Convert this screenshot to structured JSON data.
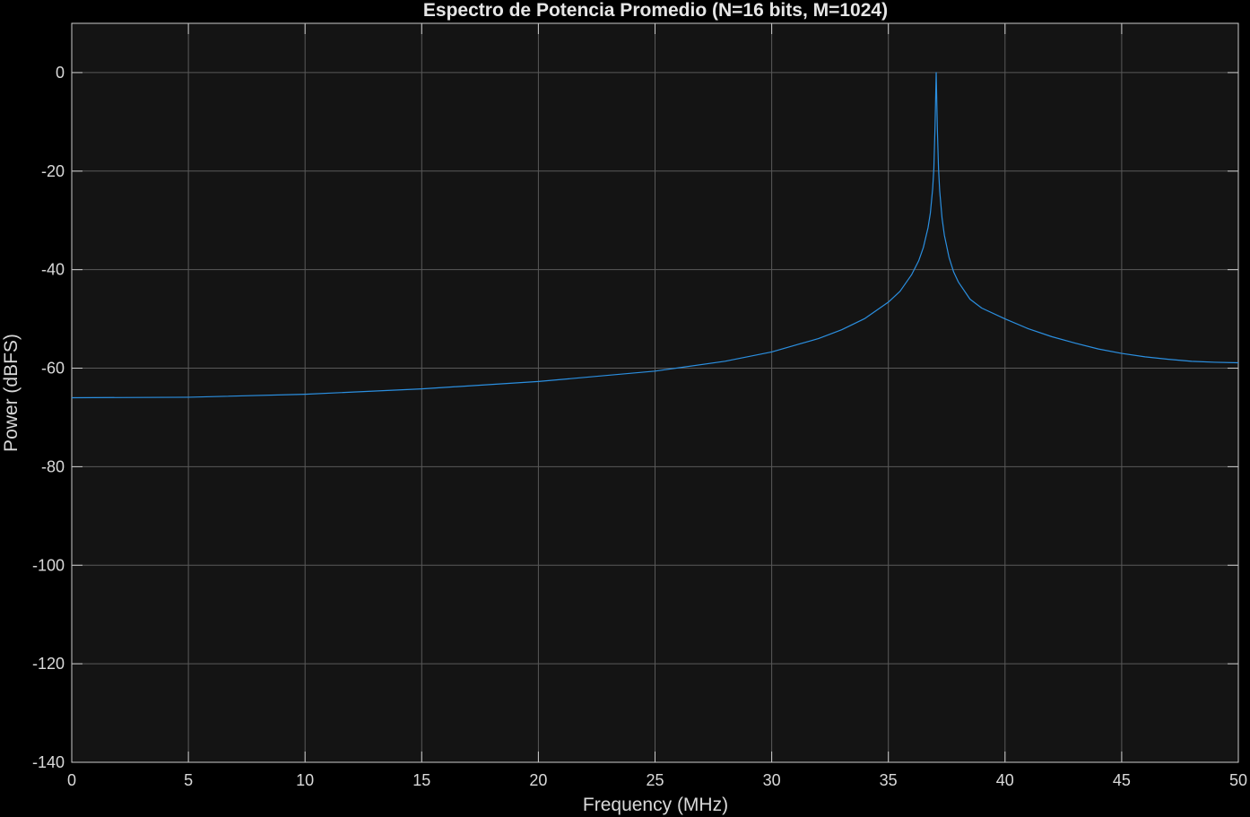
{
  "chart_data": {
    "type": "line",
    "title": "Espectro de Potencia Promedio (N=16 bits, M=1024)",
    "xlabel": "Frequency (MHz)",
    "ylabel": "Power (dBFS)",
    "xlim": [
      0,
      50
    ],
    "ylim": [
      -140,
      10
    ],
    "xticks": [
      0,
      5,
      10,
      15,
      20,
      25,
      30,
      35,
      40,
      45,
      50
    ],
    "xtick_labels": [
      "0",
      "5",
      "10",
      "15",
      "20",
      "25",
      "30",
      "35",
      "40",
      "45",
      "50"
    ],
    "yticks": [
      0,
      -20,
      -40,
      -60,
      -80,
      -100,
      -120,
      -140
    ],
    "ytick_labels": [
      "0",
      "-20",
      "-40",
      "-60",
      "-80",
      "-100",
      "-120",
      "-140"
    ],
    "grid": true,
    "series": [
      {
        "color": "#2b8fe0",
        "x": [
          0,
          5,
          10,
          15,
          20,
          25,
          28,
          30,
          32,
          33,
          34,
          35,
          35.5,
          36,
          36.3,
          36.5,
          36.7,
          36.8,
          36.9,
          36.95,
          37.0,
          37.05,
          37.1,
          37.15,
          37.2,
          37.3,
          37.4,
          37.6,
          37.8,
          38,
          38.5,
          39,
          40,
          41,
          42,
          43,
          44,
          45,
          46,
          47,
          48,
          49,
          50
        ],
        "y": [
          -66.0,
          -65.9,
          -65.3,
          -64.2,
          -62.7,
          -60.6,
          -58.6,
          -56.7,
          -54.0,
          -52.2,
          -49.9,
          -46.6,
          -44.4,
          -41.0,
          -38.2,
          -35.5,
          -31.5,
          -28.5,
          -23.5,
          -19.5,
          -11.0,
          0.0,
          -11.5,
          -19.5,
          -24.0,
          -29.5,
          -33.0,
          -37.5,
          -40.5,
          -42.5,
          -46.0,
          -47.8,
          -50.0,
          -52.0,
          -53.6,
          -54.9,
          -56.1,
          -57.0,
          -57.7,
          -58.2,
          -58.6,
          -58.8,
          -58.9
        ]
      }
    ]
  }
}
